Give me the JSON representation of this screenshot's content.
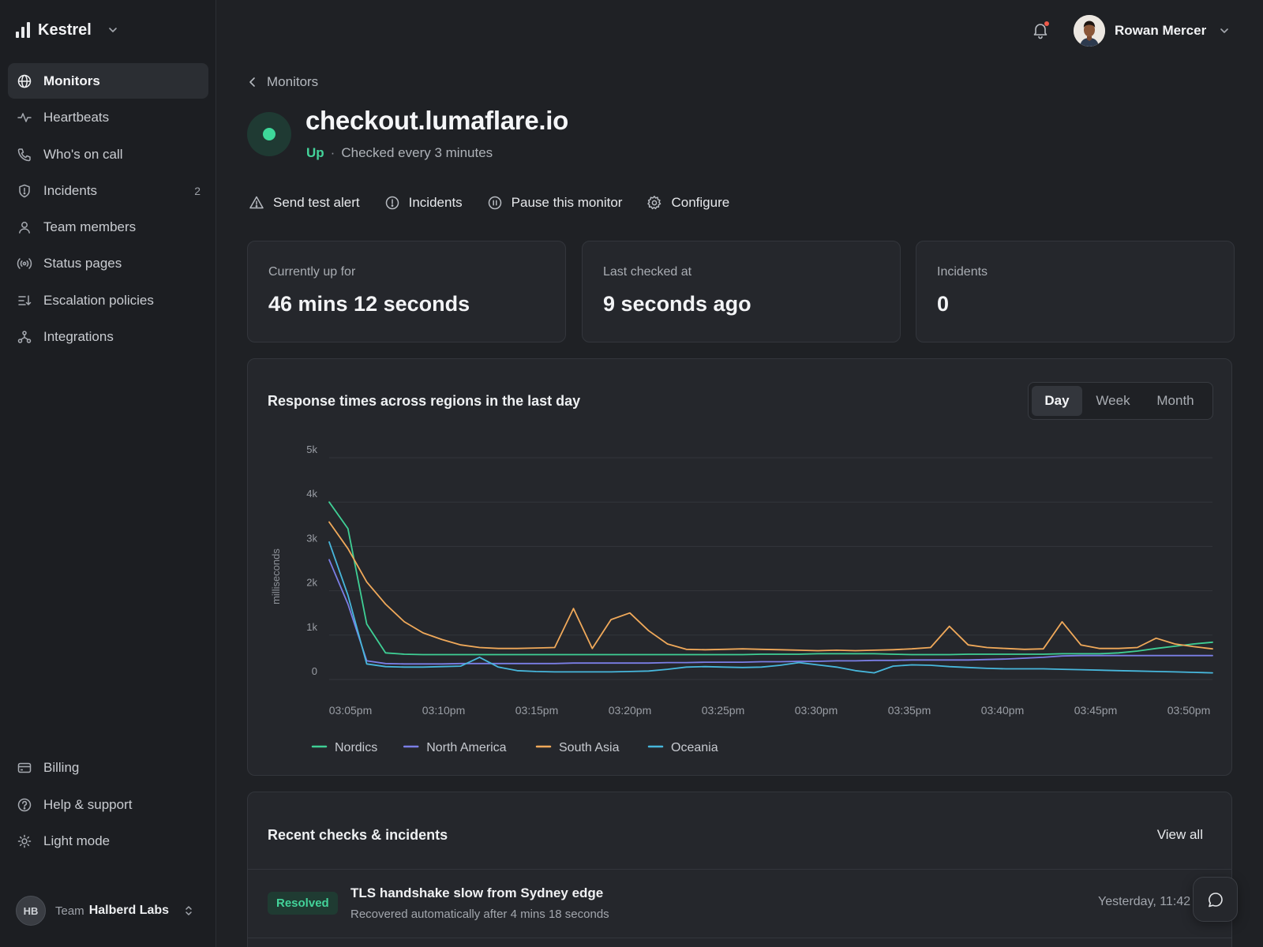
{
  "app": {
    "name": "Kestrel"
  },
  "sidebar": {
    "items": [
      {
        "label": "Monitors",
        "icon": "globe-icon",
        "active": true
      },
      {
        "label": "Heartbeats",
        "icon": "pulse-icon"
      },
      {
        "label": "Who's on call",
        "icon": "phone-icon"
      },
      {
        "label": "Incidents",
        "icon": "shield-icon",
        "count": "2"
      },
      {
        "label": "Team members",
        "icon": "user-icon"
      },
      {
        "label": "Status pages",
        "icon": "broadcast-icon"
      },
      {
        "label": "Escalation policies",
        "icon": "escalation-icon"
      },
      {
        "label": "Integrations",
        "icon": "integrations-icon"
      }
    ],
    "bottom_items": [
      {
        "label": "Billing",
        "icon": "credit-card-icon"
      },
      {
        "label": "Help & support",
        "icon": "help-circle-icon"
      },
      {
        "label": "Light mode",
        "icon": "sun-icon"
      }
    ],
    "team": {
      "initials": "HB",
      "prefix": "Team",
      "name": "Halberd Labs"
    }
  },
  "header": {
    "user_name": "Rowan Mercer"
  },
  "breadcrumb": {
    "label": "Monitors"
  },
  "monitor": {
    "name": "checkout.lumaflare.io",
    "status": "Up",
    "separator": "·",
    "check_interval": "Checked every 3 minutes",
    "status_color": "#3ed89a"
  },
  "actions": [
    {
      "label": "Send test alert",
      "icon": "warning-triangle-icon"
    },
    {
      "label": "Incidents",
      "icon": "alert-circle-icon"
    },
    {
      "label": "Pause this monitor",
      "icon": "pause-circle-icon"
    },
    {
      "label": "Configure",
      "icon": "gear-icon"
    }
  ],
  "stats": [
    {
      "label": "Currently up for",
      "value": "46 mins 12 seconds"
    },
    {
      "label": "Last checked at",
      "value": "9 seconds ago"
    },
    {
      "label": "Incidents",
      "value": "0"
    }
  ],
  "chart_card": {
    "title": "Response times across regions in the last day",
    "ranges": [
      "Day",
      "Week",
      "Month"
    ],
    "active_range": "Day"
  },
  "chart_data": {
    "type": "line",
    "title": "Response times across regions in the last day",
    "ylabel": "milliseconds",
    "xlabel": "",
    "ylim": [
      0,
      5000
    ],
    "yticks": [
      0,
      1000,
      2000,
      3000,
      4000,
      5000
    ],
    "ytick_labels": [
      "0",
      "1k",
      "2k",
      "3k",
      "4k",
      "5k"
    ],
    "x_start": "03:04pm",
    "x_end": "03:51pm",
    "xtick_labels": [
      "03:05pm",
      "03:10pm",
      "03:15pm",
      "03:20pm",
      "03:25pm",
      "03:30pm",
      "03:35pm",
      "03:40pm",
      "03:45pm",
      "03:50pm"
    ],
    "grid": true,
    "legend_position": "bottom-left",
    "x": [
      "03:04pm",
      "03:05pm",
      "03:06pm",
      "03:07pm",
      "03:08pm",
      "03:09pm",
      "03:10pm",
      "03:11pm",
      "03:12pm",
      "03:13pm",
      "03:14pm",
      "03:15pm",
      "03:16pm",
      "03:17pm",
      "03:18pm",
      "03:19pm",
      "03:20pm",
      "03:21pm",
      "03:22pm",
      "03:23pm",
      "03:24pm",
      "03:25pm",
      "03:26pm",
      "03:27pm",
      "03:28pm",
      "03:29pm",
      "03:30pm",
      "03:31pm",
      "03:32pm",
      "03:33pm",
      "03:34pm",
      "03:35pm",
      "03:36pm",
      "03:37pm",
      "03:38pm",
      "03:39pm",
      "03:40pm",
      "03:41pm",
      "03:42pm",
      "03:43pm",
      "03:44pm",
      "03:45pm",
      "03:46pm",
      "03:47pm",
      "03:48pm",
      "03:49pm",
      "03:50pm",
      "03:51pm"
    ],
    "series": [
      {
        "name": "Nordics",
        "color": "#3fcf95",
        "values": [
          4000,
          3400,
          1250,
          600,
          570,
          560,
          560,
          560,
          560,
          560,
          560,
          560,
          560,
          560,
          560,
          560,
          560,
          560,
          560,
          560,
          560,
          560,
          560,
          570,
          570,
          570,
          580,
          580,
          580,
          580,
          570,
          560,
          560,
          560,
          570,
          570,
          570,
          570,
          570,
          580,
          580,
          580,
          600,
          640,
          700,
          750,
          800,
          840
        ]
      },
      {
        "name": "North America",
        "color": "#7b7fe6",
        "values": [
          2700,
          1700,
          420,
          360,
          350,
          350,
          350,
          360,
          360,
          360,
          360,
          360,
          360,
          370,
          370,
          370,
          370,
          370,
          380,
          380,
          390,
          390,
          390,
          400,
          400,
          410,
          410,
          420,
          420,
          430,
          430,
          440,
          440,
          440,
          440,
          450,
          460,
          480,
          500,
          530,
          540,
          540,
          540,
          540,
          540,
          540,
          540,
          540
        ]
      },
      {
        "name": "South Asia",
        "color": "#f0a95a",
        "values": [
          3550,
          2950,
          2200,
          1700,
          1300,
          1050,
          900,
          780,
          720,
          700,
          700,
          710,
          720,
          1600,
          700,
          1350,
          1500,
          1100,
          800,
          680,
          670,
          680,
          690,
          680,
          670,
          660,
          650,
          660,
          650,
          660,
          670,
          690,
          720,
          1200,
          780,
          720,
          700,
          680,
          690,
          1300,
          780,
          700,
          700,
          720,
          930,
          800,
          740,
          690
        ]
      },
      {
        "name": "Oceania",
        "color": "#47b7dc",
        "values": [
          3100,
          1900,
          350,
          290,
          280,
          280,
          290,
          300,
          500,
          280,
          200,
          180,
          170,
          170,
          170,
          170,
          180,
          190,
          230,
          280,
          290,
          280,
          270,
          280,
          320,
          380,
          330,
          280,
          200,
          150,
          300,
          330,
          320,
          290,
          270,
          250,
          240,
          240,
          240,
          230,
          220,
          210,
          200,
          190,
          180,
          170,
          160,
          150
        ]
      }
    ]
  },
  "recent": {
    "title": "Recent checks & incidents",
    "view_all": "View all",
    "rows": [
      {
        "badge": "Resolved",
        "title": "TLS handshake slow from Sydney edge",
        "subtitle": "Recovered automatically after 4 mins 18 seconds",
        "time": "Yesterday, 11:42"
      }
    ]
  }
}
